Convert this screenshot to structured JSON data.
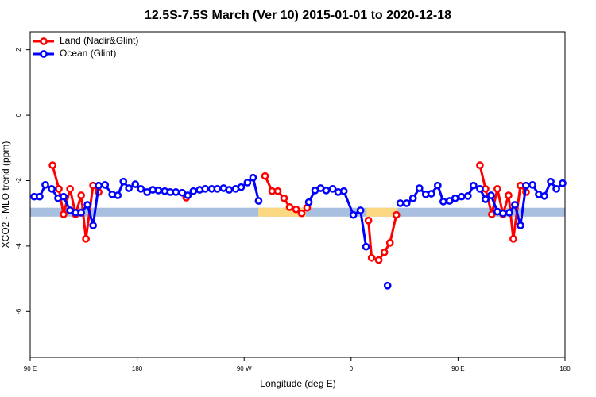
{
  "chart_data": {
    "type": "line",
    "title": "12.5S-7.5S March (Ver 10)   2015-01-01 to 2020-12-18",
    "x_label": "Longitude (deg E)",
    "y_label": "XCO2 - MLO trend (ppm)",
    "xlim": [
      90,
      540
    ],
    "ylim": [
      -7.4,
      2.55
    ],
    "xticks": [
      {
        "value": 90,
        "label": "90 E"
      },
      180,
      {
        "value": 270,
        "label": "90 W"
      },
      {
        "value": 360,
        "label": "0"
      },
      {
        "value": 450,
        "label": "90 E"
      },
      {
        "value": 540,
        "label": "180"
      }
    ],
    "yticks": [
      2,
      0,
      -2,
      -4,
      -6
    ],
    "legend": "top-left",
    "surface_band": {
      "range": [
        -3.1,
        -2.83
      ],
      "color": "#a9bfdf",
      "land_color": "#fdd882",
      "land_spans": [
        [
          282,
          322
        ],
        [
          373,
          399
        ]
      ]
    },
    "series": [
      {
        "name": "Land (Nadir&Glint)",
        "color": "#ff0000",
        "x": [
          108.8,
          114.1,
          118.1,
          123.5,
          128.2,
          132.9,
          136.9,
          142.9,
          147.6,
          null,
          221.3,
          null,
          287.6,
          293.6,
          298.3,
          303.6,
          308.3,
          313.7,
          318.4,
          323.0,
          null,
          374.6,
          377.3,
          383.3,
          388.0,
          392.7,
          398.1,
          null,
          468.4,
          473.1,
          478.4,
          483.1,
          487.8,
          492.5,
          496.5,
          502.5,
          507.2
        ],
        "values": [
          -1.53,
          -2.25,
          -3.03,
          -2.25,
          -3.03,
          -2.45,
          -3.78,
          -2.15,
          -2.35,
          null,
          -2.52,
          null,
          -1.86,
          -2.32,
          -2.32,
          -2.54,
          -2.81,
          -2.88,
          -3.0,
          -2.83,
          null,
          -3.22,
          -4.36,
          -4.43,
          -4.19,
          -3.9,
          -3.05,
          null,
          -1.53,
          -2.25,
          -3.03,
          -2.25,
          -3.03,
          -2.45,
          -3.78,
          -2.15,
          -2.35
        ]
      },
      {
        "name": "Ocean (Glint)",
        "color": "#0000ff",
        "x": [
          93.3,
          98.0,
          102.7,
          108.1,
          113.4,
          118.1,
          123.5,
          128.2,
          132.9,
          138.2,
          142.9,
          147.6,
          153.0,
          159.0,
          163.7,
          168.4,
          173.0,
          178.4,
          183.1,
          188.4,
          193.1,
          197.8,
          203.2,
          207.9,
          212.6,
          217.9,
          222.6,
          227.3,
          232.6,
          237.3,
          242.7,
          247.4,
          252.7,
          257.4,
          262.8,
          267.5,
          272.8,
          277.5,
          282.2,
          null,
          324.4,
          329.7,
          334.4,
          339.1,
          344.5,
          349.2,
          353.9,
          361.9,
          367.9,
          372.6,
          null,
          390.7,
          null,
          401.4,
          406.8,
          412.1,
          417.5,
          422.8,
          427.5,
          432.9,
          437.6,
          442.9,
          447.6,
          453.0,
          458.3,
          463.0,
          468.4,
          473.1,
          477.8,
          483.1,
          487.8,
          493.1,
          497.8,
          502.5,
          507.2,
          512.6,
          517.9,
          522.6,
          528.0,
          532.7,
          538.0
        ],
        "values": [
          -2.49,
          -2.49,
          -2.13,
          -2.25,
          -2.54,
          -2.49,
          -2.91,
          -2.98,
          -2.98,
          -2.74,
          -3.37,
          -2.15,
          -2.13,
          -2.42,
          -2.45,
          -2.03,
          -2.23,
          -2.11,
          -2.25,
          -2.35,
          -2.28,
          -2.3,
          -2.32,
          -2.35,
          -2.35,
          -2.37,
          -2.45,
          -2.32,
          -2.28,
          -2.25,
          -2.25,
          -2.25,
          -2.23,
          -2.28,
          -2.25,
          -2.2,
          -2.06,
          -1.91,
          -2.62,
          null,
          -2.66,
          -2.3,
          -2.23,
          -2.3,
          -2.25,
          -2.35,
          -2.32,
          -3.05,
          -2.91,
          -4.02,
          null,
          -5.21,
          null,
          -2.69,
          -2.69,
          -2.54,
          -2.23,
          -2.42,
          -2.4,
          -2.15,
          -2.64,
          -2.62,
          -2.54,
          -2.49,
          -2.47,
          -2.15,
          -2.25,
          -2.57,
          -2.45,
          -2.95,
          -3.0,
          -2.98,
          -2.74,
          -3.37,
          -2.15,
          -2.13,
          -2.42,
          -2.47,
          -2.03,
          -2.25,
          -2.08
        ]
      }
    ]
  }
}
